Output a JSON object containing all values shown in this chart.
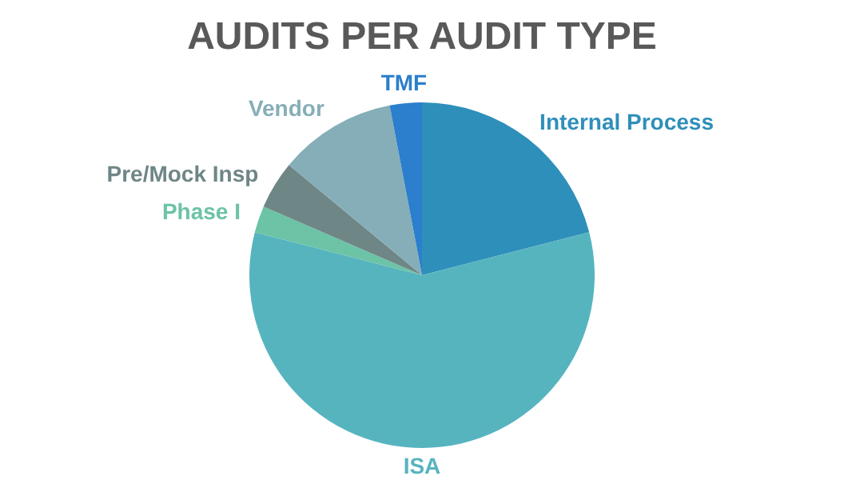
{
  "chart_data": {
    "type": "pie",
    "title": "AUDITS PER AUDIT TYPE",
    "categories": [
      "Internal Process",
      "ISA",
      "Phase I",
      "Pre/Mock Insp",
      "Vendor",
      "TMF"
    ],
    "values": [
      21,
      58,
      2.5,
      4.5,
      11,
      3
    ],
    "colors": [
      "#2e8fba",
      "#56b4bf",
      "#6cc3a6",
      "#6f8686",
      "#86aeb8",
      "#2b7fcc"
    ],
    "legend": false
  }
}
